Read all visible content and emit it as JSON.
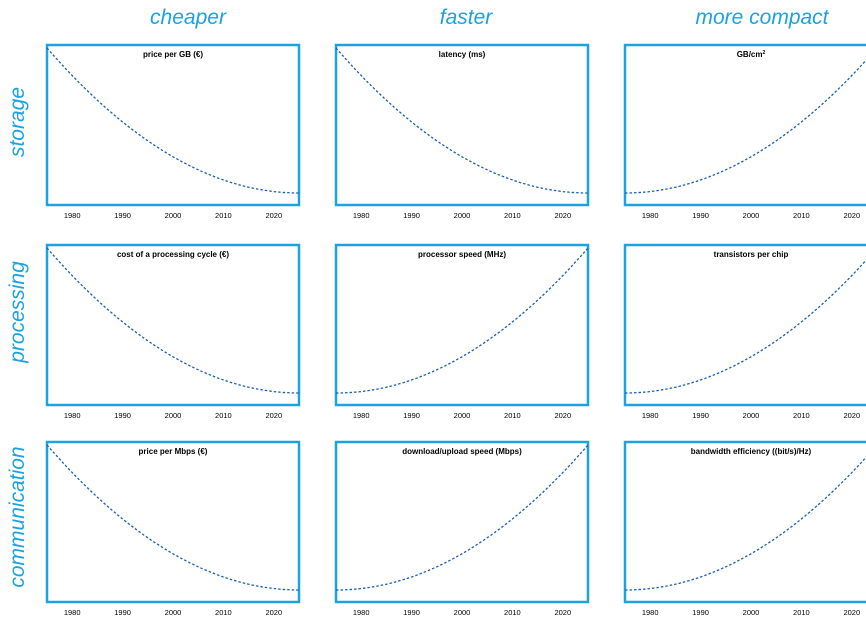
{
  "columns": [
    "cheaper",
    "faster",
    "more compact"
  ],
  "rows": [
    "storage",
    "processing",
    "communication"
  ],
  "colors": {
    "accent": "#1aa3e0",
    "curve": "#1a5fb4",
    "text": "#000000"
  },
  "chart_data": [
    {
      "type": "line",
      "title": "price per GB (€)",
      "trend": "decreasing",
      "xticks": [
        "1980",
        "1990",
        "2000",
        "2010",
        "2020"
      ],
      "xlim": [
        1975,
        2025
      ],
      "x": [
        1975,
        1985,
        1995,
        2005,
        2015,
        2023
      ],
      "values": [
        1.0,
        0.62,
        0.34,
        0.14,
        0.03,
        0.01
      ]
    },
    {
      "type": "line",
      "title": "latency (ms)",
      "trend": "decreasing",
      "xticks": [
        "1980",
        "1990",
        "2000",
        "2010",
        "2020"
      ],
      "xlim": [
        1975,
        2025
      ],
      "x": [
        1975,
        1985,
        1995,
        2005,
        2015,
        2023
      ],
      "values": [
        1.0,
        0.62,
        0.34,
        0.14,
        0.03,
        0.01
      ]
    },
    {
      "type": "line",
      "title": "GB/cm",
      "title_sup": "2",
      "trend": "increasing",
      "xticks": [
        "1980",
        "1990",
        "2000",
        "2010",
        "2020"
      ],
      "xlim": [
        1975,
        2025
      ],
      "x": [
        1975,
        1985,
        1995,
        2005,
        2015,
        2023
      ],
      "values": [
        0.01,
        0.06,
        0.2,
        0.42,
        0.7,
        1.0
      ]
    },
    {
      "type": "line",
      "title": "cost of a processing cycle (€)",
      "trend": "decreasing",
      "xticks": [
        "1980",
        "1990",
        "2000",
        "2010",
        "2020"
      ],
      "xlim": [
        1975,
        2025
      ],
      "x": [
        1975,
        1985,
        1995,
        2005,
        2015,
        2023
      ],
      "values": [
        1.0,
        0.62,
        0.34,
        0.14,
        0.03,
        0.01
      ]
    },
    {
      "type": "line",
      "title": "processor speed (MHz)",
      "trend": "increasing",
      "xticks": [
        "1980",
        "1990",
        "2000",
        "2010",
        "2020"
      ],
      "xlim": [
        1975,
        2025
      ],
      "x": [
        1975,
        1985,
        1995,
        2005,
        2015,
        2023
      ],
      "values": [
        0.01,
        0.06,
        0.2,
        0.42,
        0.7,
        1.0
      ]
    },
    {
      "type": "line",
      "title": "transistors per chip",
      "trend": "increasing",
      "xticks": [
        "1980",
        "1990",
        "2000",
        "2010",
        "2020"
      ],
      "xlim": [
        1975,
        2025
      ],
      "x": [
        1975,
        1985,
        1995,
        2005,
        2015,
        2023
      ],
      "values": [
        0.01,
        0.06,
        0.2,
        0.42,
        0.7,
        1.0
      ]
    },
    {
      "type": "line",
      "title": "price per Mbps (€)",
      "trend": "decreasing",
      "xticks": [
        "1980",
        "1990",
        "2000",
        "2010",
        "2020"
      ],
      "xlim": [
        1975,
        2025
      ],
      "x": [
        1975,
        1985,
        1995,
        2005,
        2015,
        2023
      ],
      "values": [
        1.0,
        0.62,
        0.34,
        0.14,
        0.03,
        0.01
      ]
    },
    {
      "type": "line",
      "title": "download/upload speed  (Mbps)",
      "trend": "increasing",
      "xticks": [
        "1980",
        "1990",
        "2000",
        "2010",
        "2020"
      ],
      "xlim": [
        1975,
        2025
      ],
      "x": [
        1975,
        1985,
        1995,
        2005,
        2015,
        2023
      ],
      "values": [
        0.01,
        0.06,
        0.2,
        0.42,
        0.7,
        1.0
      ]
    },
    {
      "type": "line",
      "title": "bandwidth efficiency ((bit/s)/Hz)",
      "trend": "increasing",
      "xticks": [
        "1980",
        "1990",
        "2000",
        "2010",
        "2020"
      ],
      "xlim": [
        1975,
        2025
      ],
      "x": [
        1975,
        1985,
        1995,
        2005,
        2015,
        2023
      ],
      "values": [
        0.01,
        0.06,
        0.2,
        0.42,
        0.7,
        1.0
      ]
    }
  ]
}
